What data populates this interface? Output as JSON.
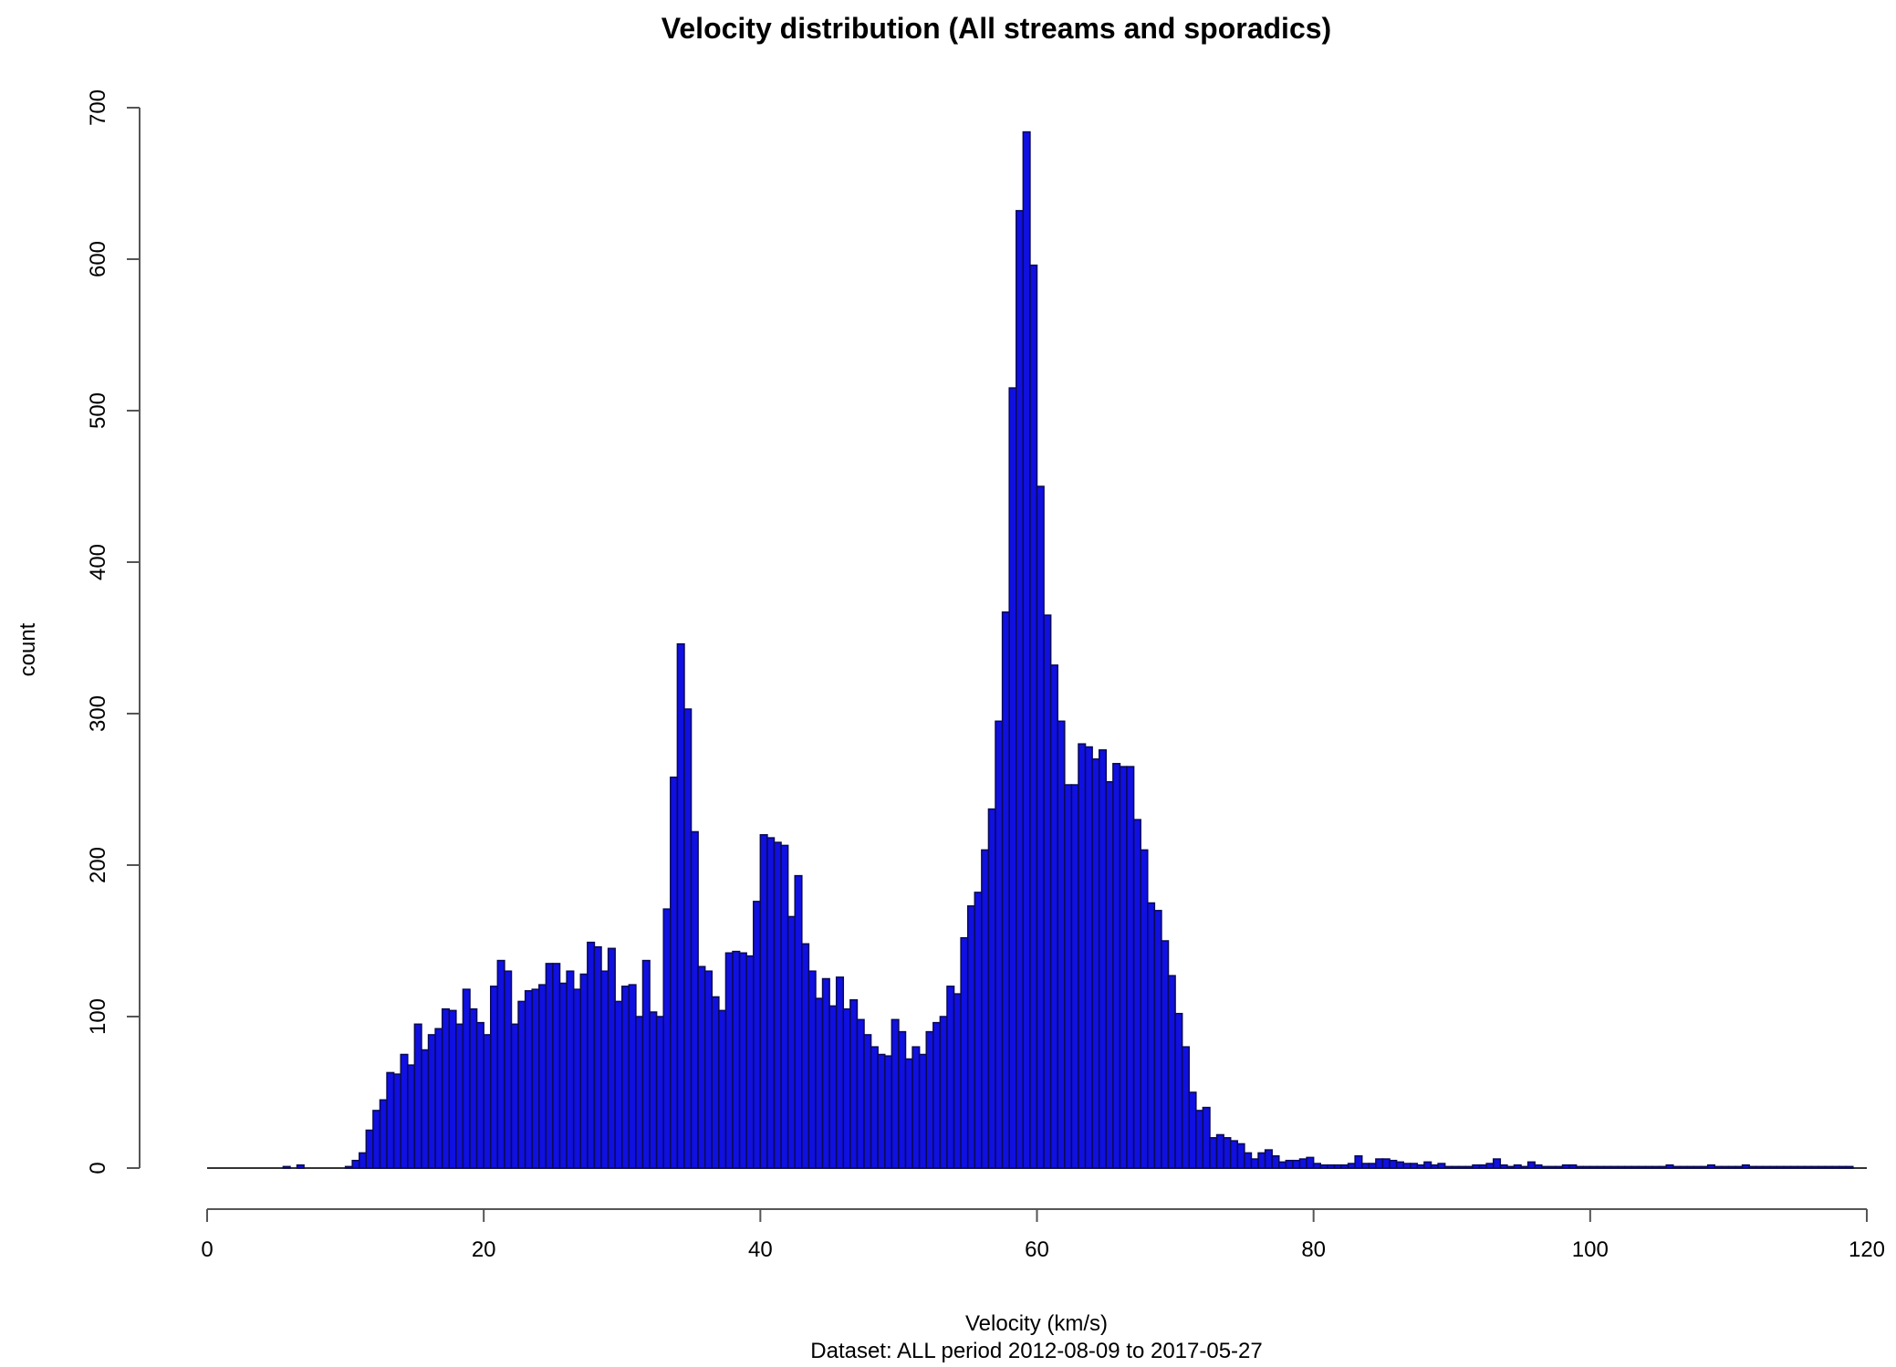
{
  "chart_data": {
    "type": "bar",
    "title": "Velocity distribution (All streams and sporadics)",
    "xlabel": "Velocity (km/s)",
    "subtitle": "Dataset: ALL period 2012-08-09 to 2017-05-27",
    "ylabel": "count",
    "xlim": [
      0,
      120
    ],
    "ylim": [
      0,
      700
    ],
    "xticks": [
      0,
      20,
      40,
      60,
      80,
      100,
      120
    ],
    "yticks": [
      0,
      100,
      200,
      300,
      400,
      500,
      600,
      700
    ],
    "bin_width": 0.5,
    "bin_start": 0,
    "color": "#1010e0",
    "values": [
      0,
      0,
      0,
      0,
      0,
      0,
      0,
      0,
      0,
      0,
      0,
      1,
      0,
      2,
      0,
      0,
      0,
      0,
      0,
      0,
      1,
      5,
      10,
      25,
      38,
      45,
      63,
      62,
      75,
      68,
      95,
      78,
      88,
      92,
      105,
      104,
      95,
      118,
      105,
      96,
      88,
      120,
      137,
      130,
      95,
      110,
      117,
      118,
      121,
      135,
      135,
      122,
      130,
      118,
      128,
      149,
      146,
      130,
      145,
      110,
      120,
      121,
      100,
      137,
      103,
      100,
      171,
      258,
      346,
      303,
      222,
      133,
      130,
      113,
      104,
      142,
      143,
      142,
      140,
      176,
      220,
      218,
      215,
      213,
      166,
      193,
      148,
      130,
      112,
      125,
      107,
      126,
      105,
      111,
      98,
      88,
      80,
      75,
      74,
      98,
      90,
      72,
      80,
      75,
      90,
      96,
      100,
      120,
      115,
      152,
      173,
      182,
      210,
      237,
      295,
      367,
      515,
      632,
      684,
      596,
      450,
      365,
      332,
      295,
      253,
      253,
      280,
      278,
      270,
      276,
      255,
      267,
      265,
      265,
      230,
      210,
      175,
      170,
      150,
      127,
      102,
      80,
      50,
      38,
      40,
      20,
      22,
      20,
      18,
      16,
      10,
      6,
      10,
      12,
      8,
      4,
      5,
      5,
      6,
      7,
      3,
      2,
      2,
      2,
      2,
      3,
      8,
      3,
      3,
      6,
      6,
      5,
      4,
      3,
      3,
      2,
      4,
      2,
      3,
      1,
      1,
      1,
      1,
      2,
      2,
      3,
      6,
      2,
      1,
      2,
      1,
      4,
      2,
      1,
      1,
      1,
      2,
      2,
      1,
      1,
      1,
      1,
      1,
      1,
      1,
      1,
      1,
      1,
      1,
      1,
      1,
      2,
      1,
      1,
      1,
      1,
      1,
      2,
      1,
      1,
      1,
      1,
      2,
      1,
      1,
      1,
      1,
      1,
      1,
      1,
      1,
      1,
      1,
      1,
      1,
      1,
      1,
      1
    ]
  }
}
